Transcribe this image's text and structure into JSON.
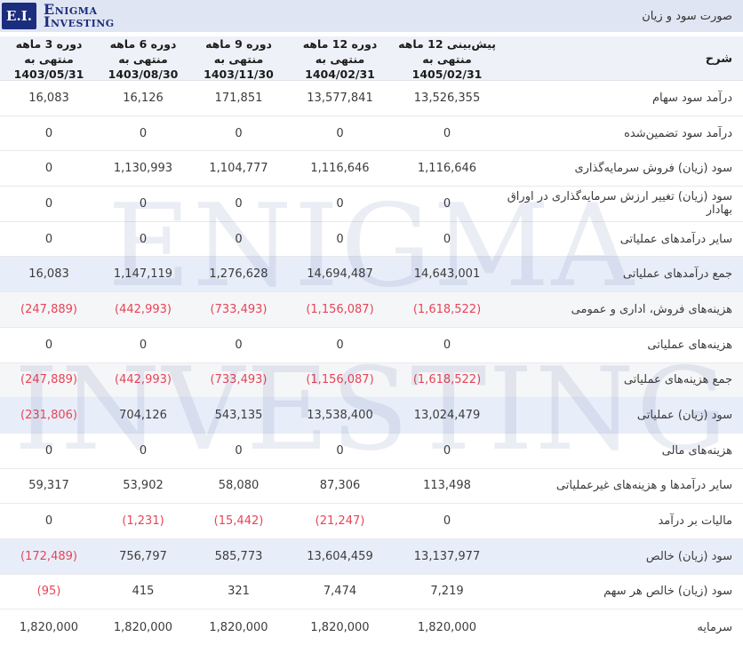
{
  "brand": {
    "logo_box": "E.I.",
    "name_line1": "Enigma",
    "name_line2": "Investing",
    "navy": "#1b2d7d"
  },
  "title_bar": {
    "title": "صورت سود و زیان"
  },
  "watermark": {
    "line1": "ENIGMA",
    "line2": "INVESTING"
  },
  "colors": {
    "topbar_bg": "#dfe5f2",
    "header_bg": "#eff1f8",
    "highlight_row_bg": "#e8eef9",
    "gray_row_bg": "#f5f6f8",
    "negative_red": "#e84456"
  },
  "table": {
    "desc_header": "شرح",
    "columns": [
      {
        "line1": "پیش‌بینی 12 ماهه منتهی به",
        "line2": "1405/02/31"
      },
      {
        "line1": "دوره 12 ماهه منتهی به",
        "line2": "1404/02/31"
      },
      {
        "line1": "دوره 9 ماهه منتهی به",
        "line2": "1403/11/30"
      },
      {
        "line1": "دوره 6 ماهه منتهی به",
        "line2": "1403/08/30"
      },
      {
        "line1": "دوره 3 ماهه منتهی به",
        "line2": "1403/05/31"
      }
    ],
    "rows": [
      {
        "label": "درآمد سود سهام",
        "style": "normal",
        "values": [
          "13,526,355",
          "13,577,841",
          "171,851",
          "16,126",
          "16,083"
        ]
      },
      {
        "label": "درآمد سود تضمین‌شده",
        "style": "normal",
        "values": [
          "0",
          "0",
          "0",
          "0",
          "0"
        ]
      },
      {
        "label": "سود (زیان) فروش سرمایه‌گذاری",
        "style": "normal",
        "values": [
          "1,116,646",
          "1,116,646",
          "1,104,777",
          "1,130,993",
          "0"
        ]
      },
      {
        "label": "سود (زیان) تغییر ارزش سرمایه‌گذاری در اوراق بهادار",
        "style": "normal",
        "values": [
          "0",
          "0",
          "0",
          "0",
          "0"
        ]
      },
      {
        "label": "سایر درآمدهای عملیاتی",
        "style": "normal",
        "values": [
          "0",
          "0",
          "0",
          "0",
          "0"
        ]
      },
      {
        "label": "جمع درآمدهای عملیاتی",
        "style": "blue",
        "values": [
          "14,643,001",
          "14,694,487",
          "1,276,628",
          "1,147,119",
          "16,083"
        ]
      },
      {
        "label": "هزینه‌های فروش، اداری و عمومی",
        "style": "gray",
        "values": [
          "(1,618,522)",
          "(1,156,087)",
          "(733,493)",
          "(442,993)",
          "(247,889)"
        ]
      },
      {
        "label": "هزینه‌های عملیاتی",
        "style": "normal",
        "values": [
          "0",
          "0",
          "0",
          "0",
          "0"
        ]
      },
      {
        "label": "جمع هزینه‌های عملیاتی",
        "style": "gray",
        "values": [
          "(1,618,522)",
          "(1,156,087)",
          "(733,493)",
          "(442,993)",
          "(247,889)"
        ]
      },
      {
        "label": "سود (زیان) عملیاتی",
        "style": "blue",
        "values": [
          "13,024,479",
          "13,538,400",
          "543,135",
          "704,126",
          "(231,806)"
        ]
      },
      {
        "label": "هزینه‌های مالی",
        "style": "normal",
        "values": [
          "0",
          "0",
          "0",
          "0",
          "0"
        ]
      },
      {
        "label": "سایر درآمدها و هزینه‌های غیرعملیاتی",
        "style": "normal",
        "values": [
          "113,498",
          "87,306",
          "58,080",
          "53,902",
          "59,317"
        ]
      },
      {
        "label": "مالیات بر درآمد",
        "style": "normal",
        "values": [
          "0",
          "(21,247)",
          "(15,442)",
          "(1,231)",
          "0"
        ]
      },
      {
        "label": "سود (زیان) خالص",
        "style": "blue",
        "values": [
          "13,137,977",
          "13,604,459",
          "585,773",
          "756,797",
          "(172,489)"
        ]
      },
      {
        "label": "سود (زیان) خالص هر سهم",
        "style": "normal",
        "values": [
          "7,219",
          "7,474",
          "321",
          "415",
          "(95)"
        ]
      },
      {
        "label": "سرمایه",
        "style": "normal",
        "values": [
          "1,820,000",
          "1,820,000",
          "1,820,000",
          "1,820,000",
          "1,820,000"
        ]
      }
    ]
  }
}
